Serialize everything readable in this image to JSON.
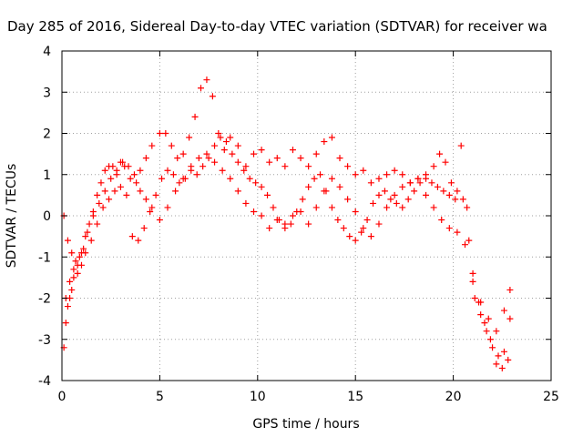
{
  "chart_data": {
    "type": "scatter",
    "title": "Day 285 of 2016, Sidereal Day-to-day VTEC variation (SDTVAR) for receiver wa",
    "xlabel": "GPS time / hours",
    "ylabel": "SDTVAR / TECUs",
    "xlim": [
      0,
      25
    ],
    "ylim": [
      -4,
      4
    ],
    "xticks": [
      0,
      5,
      10,
      15,
      20,
      25
    ],
    "yticks": [
      -4,
      -3,
      -2,
      -1,
      0,
      1,
      2,
      3,
      4
    ],
    "grid": true,
    "marker": "+",
    "color": "#ff0000",
    "series": [
      {
        "x": [
          0.1,
          0.2,
          0.3,
          0.4,
          0.5,
          0.6,
          0.8,
          1.0,
          1.2,
          1.4,
          1.6,
          1.8,
          2.0,
          2.2,
          2.4,
          2.6,
          2.8,
          3.0,
          3.2,
          3.5,
          3.8,
          4.0,
          4.3,
          4.6,
          5.0,
          5.3,
          5.6,
          5.9,
          6.2,
          6.5,
          6.8,
          7.1,
          7.4,
          7.7,
          8.0,
          8.3,
          8.6,
          9.0,
          9.4,
          9.8,
          10.2,
          10.6,
          11.0,
          11.4,
          11.8,
          12.2,
          12.6,
          13.0,
          13.4,
          13.8,
          14.2,
          14.6,
          15.0,
          15.4,
          15.8,
          16.2,
          16.6,
          17.0,
          17.4,
          17.8,
          18.2,
          18.6,
          19.0,
          19.3,
          19.6,
          19.9,
          20.2,
          20.5,
          20.8,
          21.1,
          21.4,
          21.7,
          22.0,
          22.3,
          22.6,
          22.9
        ],
        "y": [
          -3.2,
          -2.6,
          -2.2,
          -2.0,
          -1.8,
          -1.5,
          -1.2,
          -0.9,
          -0.5,
          -0.2,
          0.1,
          0.5,
          0.8,
          1.1,
          1.2,
          1.2,
          1.1,
          1.3,
          1.2,
          0.9,
          0.8,
          1.1,
          1.4,
          1.7,
          2.0,
          2.0,
          1.7,
          1.4,
          1.5,
          1.9,
          2.4,
          3.1,
          3.3,
          2.9,
          2.0,
          1.6,
          1.9,
          1.7,
          1.2,
          1.5,
          1.6,
          1.3,
          1.4,
          1.2,
          1.6,
          1.4,
          1.2,
          1.5,
          1.8,
          1.9,
          1.4,
          1.2,
          1.0,
          1.1,
          0.8,
          0.9,
          1.0,
          1.1,
          1.0,
          0.8,
          0.9,
          1.0,
          1.2,
          1.5,
          1.3,
          0.8,
          0.6,
          0.4,
          -0.6,
          -2.0,
          -2.4,
          -2.8,
          -3.2,
          -3.4,
          -3.3,
          -2.5
        ]
      },
      {
        "x": [
          0.1,
          0.3,
          0.5,
          0.7,
          0.9,
          1.1,
          1.3,
          1.6,
          1.9,
          2.2,
          2.5,
          2.8,
          3.1,
          3.4,
          3.7,
          4.0,
          4.3,
          4.6,
          5.0,
          5.4,
          5.8,
          6.2,
          6.6,
          7.0,
          7.4,
          7.8,
          8.2,
          8.6,
          9.0,
          9.4,
          9.8,
          10.2,
          10.6,
          11.0,
          11.4,
          11.8,
          12.2,
          12.6,
          13.0,
          13.4,
          13.8,
          14.2,
          14.6,
          15.0,
          15.4,
          15.8,
          16.2,
          16.6,
          17.0,
          17.4,
          17.8,
          18.2,
          18.6,
          19.0,
          19.4,
          19.8,
          20.2,
          20.6,
          21.0,
          21.4,
          21.8,
          22.2,
          22.6,
          22.9
        ],
        "y": [
          0.0,
          -0.6,
          -0.9,
          -1.1,
          -1.0,
          -0.8,
          -0.4,
          0.0,
          0.3,
          0.6,
          0.9,
          1.0,
          1.3,
          1.2,
          1.0,
          0.6,
          0.4,
          0.2,
          -0.1,
          0.2,
          0.6,
          0.9,
          1.2,
          1.4,
          1.5,
          1.3,
          1.1,
          0.9,
          0.6,
          0.3,
          0.1,
          0.0,
          -0.3,
          -0.1,
          -0.2,
          0.0,
          0.1,
          -0.2,
          0.2,
          0.6,
          0.9,
          0.7,
          0.4,
          0.1,
          -0.3,
          -0.5,
          -0.2,
          0.2,
          0.5,
          0.7,
          0.8,
          0.9,
          0.5,
          0.2,
          -0.1,
          -0.3,
          -0.4,
          -0.7,
          -1.6,
          -2.1,
          -2.5,
          -2.8,
          -2.3,
          -1.8
        ]
      },
      {
        "x": [
          0.2,
          0.4,
          0.6,
          0.8,
          1.0,
          1.2,
          1.5,
          1.8,
          2.1,
          2.4,
          2.7,
          3.0,
          3.3,
          3.6,
          3.9,
          4.2,
          4.5,
          4.8,
          5.1,
          5.4,
          5.7,
          6.0,
          6.3,
          6.6,
          6.9,
          7.2,
          7.5,
          7.8,
          8.1,
          8.4,
          8.7,
          9.0,
          9.3,
          9.6,
          9.9,
          10.2,
          10.5,
          10.8,
          11.1,
          11.4,
          11.7,
          12.0,
          12.3,
          12.6,
          12.9,
          13.2,
          13.5,
          13.8,
          14.1,
          14.4,
          14.7,
          15.0,
          15.3,
          15.6,
          15.9,
          16.2,
          16.5,
          16.8,
          17.1,
          17.4,
          17.7,
          18.0,
          18.3,
          18.6,
          18.9,
          19.2,
          19.5,
          19.8,
          20.1,
          20.4,
          20.7,
          21.0,
          21.3,
          21.6,
          21.9,
          22.2,
          22.5,
          22.8
        ],
        "y": [
          -2.0,
          -1.6,
          -1.3,
          -1.4,
          -1.2,
          -0.9,
          -0.6,
          -0.2,
          0.2,
          0.4,
          0.6,
          0.7,
          0.5,
          -0.5,
          -0.6,
          -0.3,
          0.1,
          0.5,
          0.9,
          1.1,
          1.0,
          0.8,
          0.9,
          1.1,
          1.0,
          1.2,
          1.4,
          1.7,
          1.9,
          1.8,
          1.5,
          1.3,
          1.1,
          0.9,
          0.8,
          0.7,
          0.5,
          0.2,
          -0.1,
          -0.3,
          -0.2,
          0.1,
          0.4,
          0.7,
          0.9,
          1.0,
          0.6,
          0.2,
          -0.1,
          -0.3,
          -0.5,
          -0.6,
          -0.4,
          -0.1,
          0.3,
          0.5,
          0.6,
          0.4,
          0.3,
          0.2,
          0.4,
          0.6,
          0.8,
          0.9,
          0.8,
          0.7,
          0.6,
          0.5,
          0.4,
          1.7,
          0.2,
          -1.4,
          -2.1,
          -2.6,
          -3.0,
          -3.6,
          -3.7,
          -3.5
        ]
      }
    ]
  }
}
